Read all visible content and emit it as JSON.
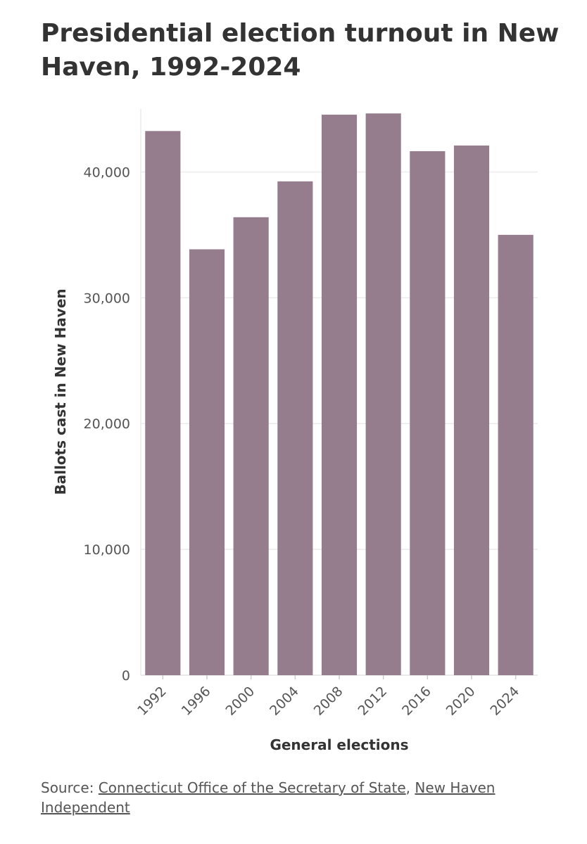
{
  "chart_data": {
    "type": "bar",
    "title": "Presidential election turnout in New Haven, 1992-2024",
    "xlabel": "General elections",
    "ylabel": "Ballots cast in New Haven",
    "categories": [
      "1992",
      "1996",
      "2000",
      "2004",
      "2008",
      "2012",
      "2016",
      "2020",
      "2024"
    ],
    "values": [
      43250,
      33850,
      36400,
      39250,
      44550,
      44650,
      41650,
      42100,
      35000
    ],
    "ylim": [
      0,
      45000
    ],
    "yticks": [
      0,
      10000,
      20000,
      30000,
      40000
    ],
    "ytick_labels": [
      "0",
      "10,000",
      "20,000",
      "30,000",
      "40,000"
    ],
    "grid": true,
    "bar_color": "#967d8d"
  },
  "source": {
    "prefix": "Source: ",
    "link1": "Connecticut Office of the Secretary of State",
    "separator": ", ",
    "link2": "New Haven Independent"
  }
}
